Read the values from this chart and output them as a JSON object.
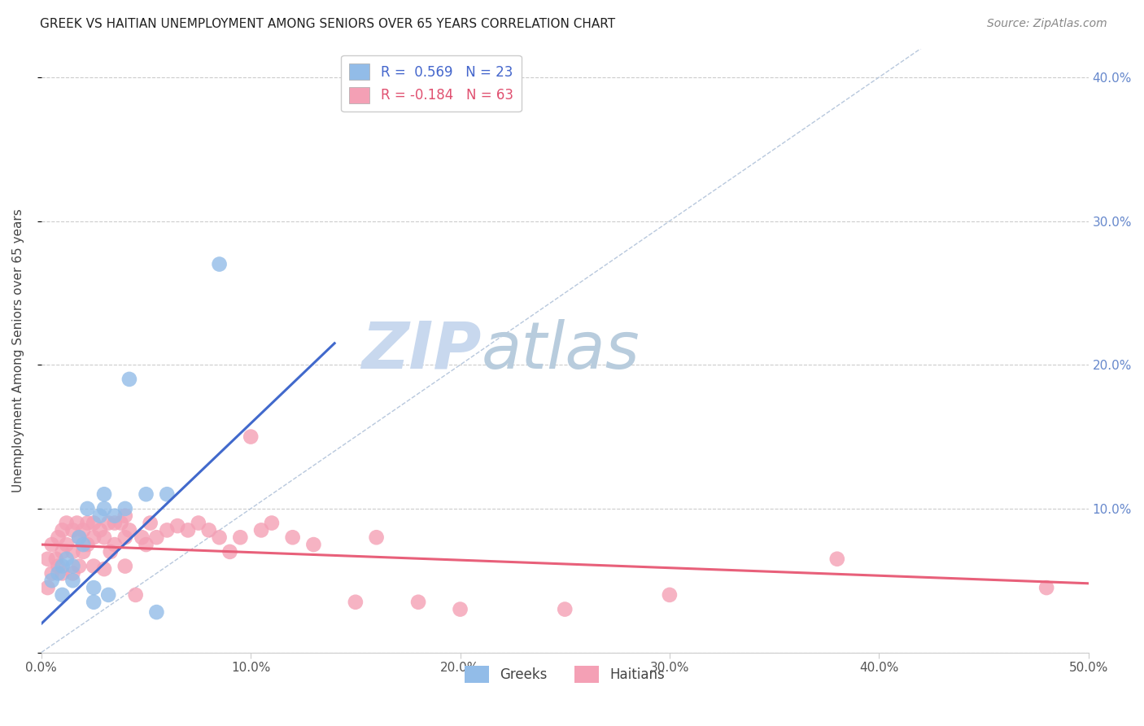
{
  "title": "GREEK VS HAITIAN UNEMPLOYMENT AMONG SENIORS OVER 65 YEARS CORRELATION CHART",
  "source": "Source: ZipAtlas.com",
  "ylabel": "Unemployment Among Seniors over 65 years",
  "xlim": [
    0.0,
    0.5
  ],
  "ylim": [
    0.0,
    0.42
  ],
  "xticks": [
    0.0,
    0.1,
    0.2,
    0.3,
    0.4,
    0.5
  ],
  "yticks": [
    0.0,
    0.1,
    0.2,
    0.3,
    0.4
  ],
  "ytick_labels": [
    "",
    "10.0%",
    "20.0%",
    "30.0%",
    "40.0%"
  ],
  "xtick_labels": [
    "0.0%",
    "10.0%",
    "20.0%",
    "30.0%",
    "40.0%",
    "50.0%"
  ],
  "greek_R": 0.569,
  "greek_N": 23,
  "haitian_R": -0.184,
  "haitian_N": 63,
  "greek_color": "#92bce8",
  "haitian_color": "#f4a0b5",
  "greek_line_color": "#4169cc",
  "haitian_line_color": "#e8607a",
  "diagonal_color": "#b8c8dd",
  "watermark_zip": "ZIP",
  "watermark_atlas": "atlas",
  "watermark_color_zip": "#c8d8ee",
  "watermark_color_atlas": "#b8ccdd",
  "background_color": "#ffffff",
  "greek_x": [
    0.005,
    0.008,
    0.01,
    0.01,
    0.012,
    0.015,
    0.015,
    0.018,
    0.02,
    0.022,
    0.025,
    0.025,
    0.028,
    0.03,
    0.03,
    0.032,
    0.035,
    0.04,
    0.042,
    0.05,
    0.055,
    0.06,
    0.085
  ],
  "greek_y": [
    0.05,
    0.055,
    0.06,
    0.04,
    0.065,
    0.06,
    0.05,
    0.08,
    0.075,
    0.1,
    0.045,
    0.035,
    0.095,
    0.1,
    0.11,
    0.04,
    0.095,
    0.1,
    0.19,
    0.11,
    0.028,
    0.11,
    0.27
  ],
  "haitian_x": [
    0.003,
    0.003,
    0.005,
    0.005,
    0.007,
    0.008,
    0.008,
    0.01,
    0.01,
    0.01,
    0.012,
    0.012,
    0.015,
    0.015,
    0.015,
    0.017,
    0.018,
    0.018,
    0.02,
    0.02,
    0.022,
    0.022,
    0.025,
    0.025,
    0.025,
    0.028,
    0.03,
    0.03,
    0.032,
    0.033,
    0.035,
    0.035,
    0.038,
    0.04,
    0.04,
    0.04,
    0.042,
    0.045,
    0.048,
    0.05,
    0.052,
    0.055,
    0.06,
    0.065,
    0.07,
    0.075,
    0.08,
    0.085,
    0.09,
    0.095,
    0.1,
    0.105,
    0.11,
    0.12,
    0.13,
    0.15,
    0.16,
    0.18,
    0.2,
    0.25,
    0.3,
    0.38,
    0.48
  ],
  "haitian_y": [
    0.065,
    0.045,
    0.075,
    0.055,
    0.065,
    0.08,
    0.06,
    0.085,
    0.07,
    0.055,
    0.09,
    0.075,
    0.085,
    0.07,
    0.055,
    0.09,
    0.08,
    0.06,
    0.085,
    0.07,
    0.09,
    0.075,
    0.09,
    0.08,
    0.06,
    0.085,
    0.08,
    0.058,
    0.09,
    0.07,
    0.09,
    0.075,
    0.09,
    0.095,
    0.08,
    0.06,
    0.085,
    0.04,
    0.08,
    0.075,
    0.09,
    0.08,
    0.085,
    0.088,
    0.085,
    0.09,
    0.085,
    0.08,
    0.07,
    0.08,
    0.15,
    0.085,
    0.09,
    0.08,
    0.075,
    0.035,
    0.08,
    0.035,
    0.03,
    0.03,
    0.04,
    0.065,
    0.045
  ],
  "greek_line_x": [
    0.0,
    0.14
  ],
  "greek_line_y": [
    0.02,
    0.215
  ],
  "haitian_line_x": [
    0.0,
    0.5
  ],
  "haitian_line_y": [
    0.075,
    0.048
  ]
}
